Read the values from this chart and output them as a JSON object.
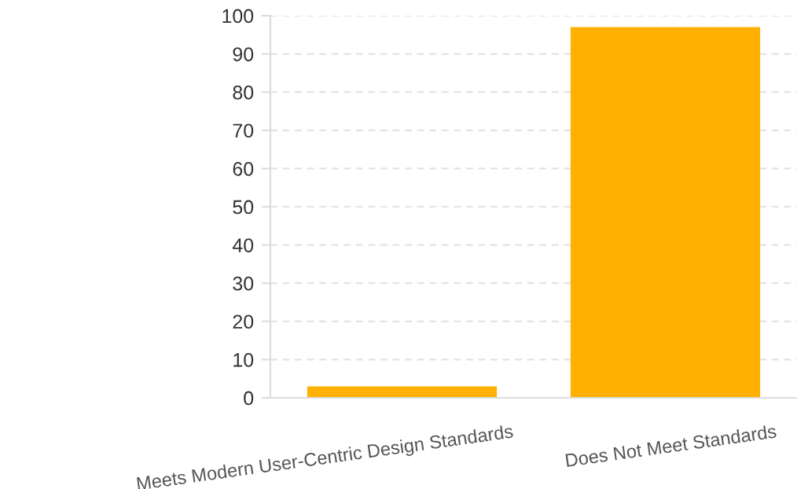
{
  "chart_data": {
    "type": "bar",
    "categories": [
      "Meets Modern User-Centric Design Standards",
      "Does Not Meet Standards"
    ],
    "values": [
      3,
      97
    ],
    "color": "#ffb000",
    "ylim": [
      0,
      100
    ],
    "yticks": [
      0,
      10,
      20,
      30,
      40,
      50,
      60,
      70,
      80,
      90,
      100
    ],
    "grid": "y"
  }
}
